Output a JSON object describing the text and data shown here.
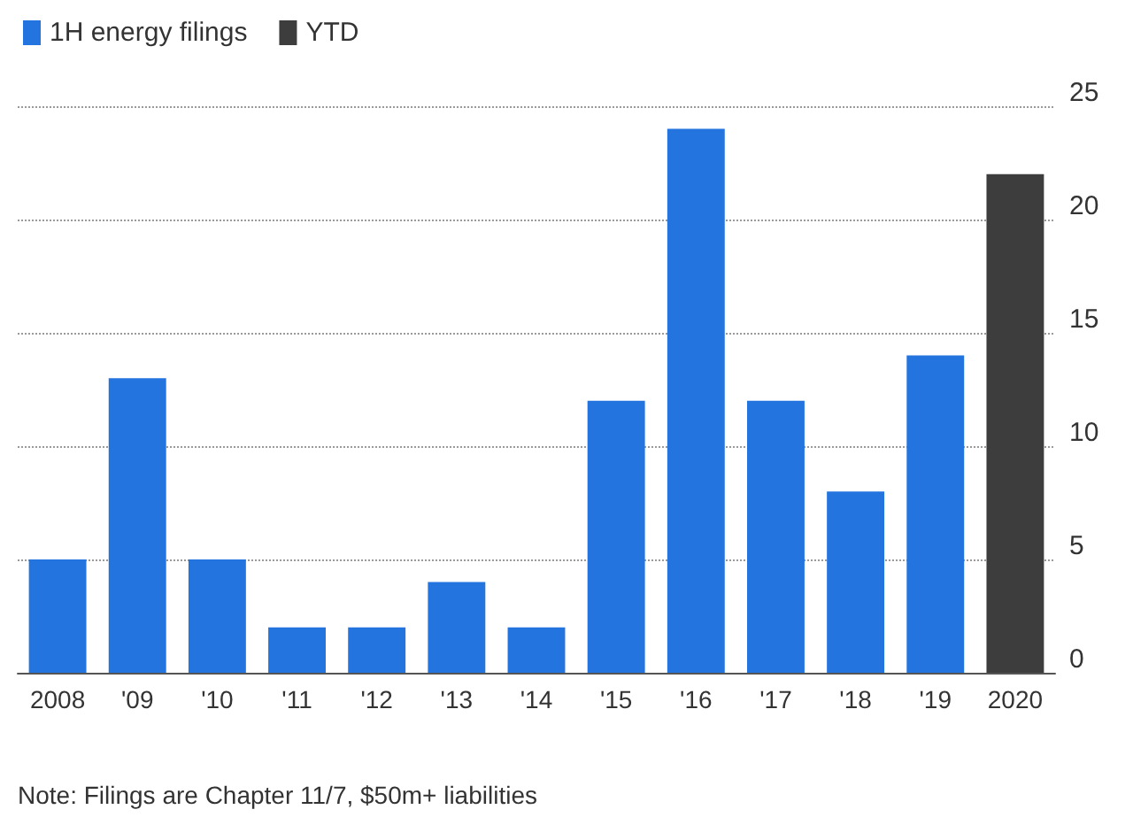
{
  "chart_data": {
    "type": "bar",
    "categories": [
      "2008",
      "'09",
      "'10",
      "'11",
      "'12",
      "'13",
      "'14",
      "'15",
      "'16",
      "'17",
      "'18",
      "'19",
      "2020"
    ],
    "series": [
      {
        "name": "1H energy filings",
        "color": "#2474e0",
        "values": [
          5,
          13,
          5,
          2,
          2,
          4,
          2,
          12,
          24,
          12,
          8,
          14,
          null
        ]
      },
      {
        "name": "YTD",
        "color": "#3d3d3d",
        "values": [
          null,
          null,
          null,
          null,
          null,
          null,
          null,
          null,
          null,
          null,
          null,
          null,
          22
        ]
      }
    ],
    "ylim": [
      0,
      25
    ],
    "yticks": [
      0,
      5,
      10,
      15,
      20,
      25
    ],
    "grid": "y",
    "legend": "top left",
    "annotations": [
      "Note: Filings are Chapter 11/7, $50m+ liabilities"
    ]
  }
}
